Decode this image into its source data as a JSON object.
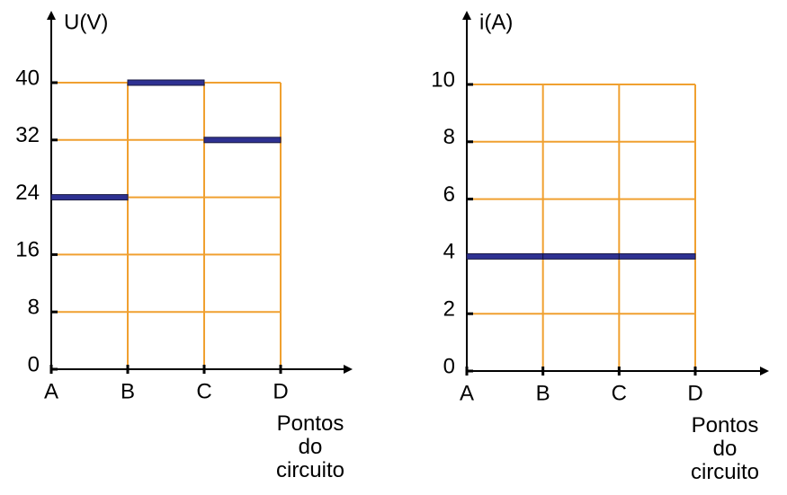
{
  "chart_data": [
    {
      "type": "step",
      "ylabel": "U(V)",
      "xlabel": "Pontos do circuito",
      "points": [
        "A",
        "B",
        "C",
        "D"
      ],
      "values": [
        24,
        40,
        32
      ],
      "color": "#2e3192",
      "ylim": [
        0,
        40
      ],
      "yticks": [
        0,
        8,
        16,
        24,
        32,
        40
      ],
      "grid": true,
      "grid_color": "#f0a030"
    },
    {
      "type": "step",
      "ylabel": "i(A)",
      "xlabel": "Pontos do circuito",
      "points": [
        "A",
        "B",
        "C",
        "D"
      ],
      "values": [
        4,
        4,
        4
      ],
      "color": "#2e3192",
      "ylim": [
        0,
        10
      ],
      "yticks": [
        0,
        2,
        4,
        6,
        8,
        10
      ],
      "grid": true,
      "grid_color": "#f0a030"
    }
  ]
}
